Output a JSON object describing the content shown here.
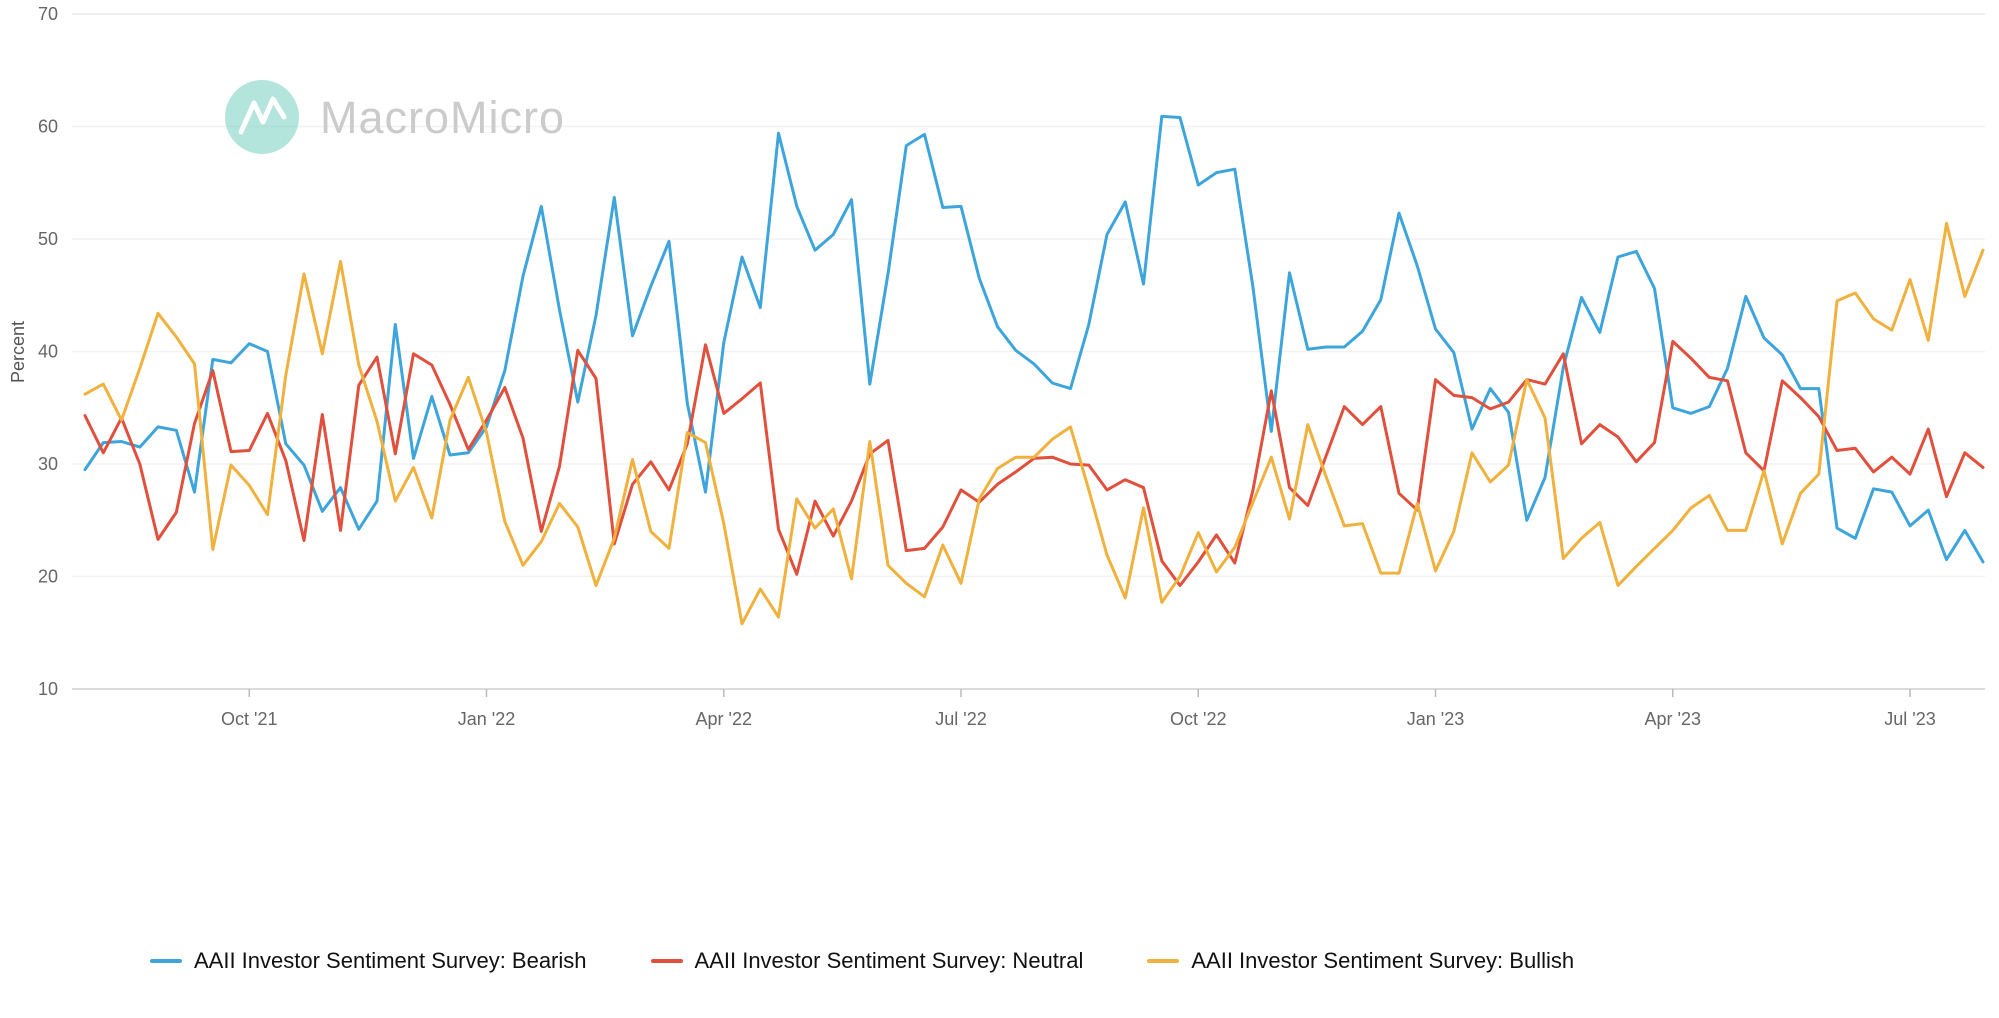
{
  "watermark": {
    "brand": "MacroMicro",
    "logo_icon": "macromicro-logo",
    "text_color": "#cbcbcb",
    "logo_color": "#82d4c6"
  },
  "chart_data": {
    "type": "line",
    "title": "",
    "xlabel": "",
    "ylabel": "Percent",
    "ylim": [
      10,
      70
    ],
    "yticks": [
      10,
      20,
      30,
      40,
      50,
      60,
      70
    ],
    "grid": "horizontal-faint",
    "legend_position": "bottom",
    "frequency": "weekly",
    "x_tick_labels": [
      "Oct '21",
      "Jan '22",
      "Apr '22",
      "Jul '22",
      "Oct '22",
      "Jan '23",
      "Apr '23",
      "Jul '23"
    ],
    "x_tick_indices": [
      9,
      22,
      35,
      48,
      61,
      74,
      87,
      100
    ],
    "series": [
      {
        "name": "AAII Investor Sentiment Survey: Bearish",
        "color": "#3DA5DB",
        "values": [
          29.5,
          31.9,
          32.0,
          31.5,
          33.3,
          33.0,
          27.5,
          39.3,
          39.0,
          40.7,
          40.0,
          31.8,
          29.9,
          25.8,
          27.9,
          24.2,
          26.7,
          42.4,
          30.5,
          36.0,
          30.8,
          31.0,
          33.3,
          38.3,
          46.7,
          52.9,
          43.7,
          35.5,
          43.2,
          53.7,
          41.4,
          45.8,
          49.8,
          35.4,
          27.5,
          40.8,
          48.4,
          43.9,
          59.4,
          52.9,
          49.0,
          50.4,
          53.5,
          37.1,
          46.9,
          58.3,
          59.3,
          52.8,
          52.9,
          46.5,
          42.2,
          40.1,
          38.9,
          37.2,
          36.7,
          42.4,
          50.4,
          53.3,
          46.0,
          60.9,
          60.8,
          54.8,
          55.9,
          56.2,
          45.7,
          32.9,
          47.0,
          40.2,
          40.4,
          40.4,
          41.8,
          44.6,
          52.3,
          47.6,
          42.0,
          39.9,
          33.1,
          36.7,
          34.6,
          25.0,
          28.8,
          38.6,
          44.8,
          41.7,
          48.4,
          48.9,
          45.6,
          35.0,
          34.5,
          35.1,
          38.5,
          44.9,
          41.2,
          39.7,
          36.7,
          36.7,
          24.3,
          23.4,
          27.8,
          27.5,
          24.5,
          25.9,
          21.5,
          24.1,
          21.3
        ]
      },
      {
        "name": "AAII Investor Sentiment Survey: Neutral",
        "color": "#E0503C",
        "values": [
          34.3,
          31.0,
          34.1,
          30.0,
          23.3,
          25.7,
          33.6,
          38.3,
          31.1,
          31.2,
          34.5,
          30.3,
          23.2,
          34.4,
          24.1,
          37.0,
          39.5,
          30.9,
          39.8,
          38.8,
          35.3,
          31.3,
          33.9,
          36.8,
          32.3,
          24.0,
          29.8,
          40.1,
          37.6,
          22.9,
          28.2,
          30.2,
          27.7,
          31.8,
          40.6,
          34.5,
          35.8,
          37.2,
          24.2,
          20.2,
          26.7,
          23.6,
          26.7,
          30.9,
          32.1,
          22.3,
          22.5,
          24.4,
          27.7,
          26.6,
          28.2,
          29.3,
          30.5,
          30.6,
          30.0,
          29.9,
          27.7,
          28.6,
          27.9,
          21.4,
          19.2,
          21.3,
          23.7,
          21.2,
          27.7,
          36.5,
          27.9,
          26.3,
          30.7,
          35.1,
          33.5,
          35.1,
          27.4,
          25.9,
          37.5,
          36.1,
          35.9,
          34.9,
          35.5,
          37.5,
          37.1,
          39.8,
          31.8,
          33.5,
          32.4,
          30.2,
          31.9,
          40.9,
          39.4,
          37.7,
          37.4,
          31.0,
          29.4,
          37.4,
          35.9,
          34.2,
          31.2,
          31.4,
          29.3,
          30.6,
          29.1,
          33.1,
          27.1,
          31.0,
          29.7
        ]
      },
      {
        "name": "AAII Investor Sentiment Survey: Bullish",
        "color": "#F0B13E",
        "values": [
          36.2,
          37.1,
          33.9,
          38.5,
          43.4,
          41.3,
          38.9,
          22.4,
          29.9,
          28.1,
          25.5,
          37.9,
          46.9,
          39.8,
          48.0,
          38.8,
          33.8,
          26.7,
          29.7,
          25.2,
          33.9,
          37.7,
          32.8,
          24.9,
          21.0,
          23.1,
          26.5,
          24.4,
          19.2,
          23.4,
          30.4,
          24.0,
          22.5,
          32.8,
          31.9,
          24.7,
          15.8,
          18.9,
          16.4,
          26.9,
          24.3,
          26.0,
          19.8,
          32.0,
          21.0,
          19.4,
          18.2,
          22.8,
          19.4,
          26.9,
          29.6,
          30.6,
          30.6,
          32.2,
          33.3,
          27.7,
          21.9,
          18.1,
          26.1,
          17.7,
          20.0,
          23.9,
          20.4,
          22.6,
          26.6,
          30.6,
          25.1,
          33.5,
          28.9,
          24.5,
          24.7,
          20.3,
          20.3,
          26.5,
          20.5,
          24.0,
          31.0,
          28.4,
          29.9,
          37.5,
          34.1,
          21.6,
          23.4,
          24.8,
          19.2,
          20.9,
          22.5,
          24.1,
          26.1,
          27.2,
          24.1,
          24.1,
          29.4,
          22.9,
          27.4,
          29.1,
          44.5,
          45.2,
          42.9,
          41.9,
          46.4,
          41.0,
          51.4,
          44.9,
          49.0
        ]
      }
    ]
  }
}
